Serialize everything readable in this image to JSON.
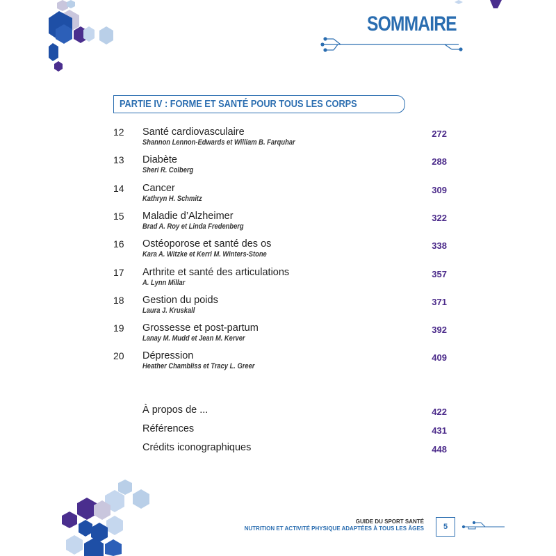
{
  "header": {
    "title": "SOMMAIRE"
  },
  "part": {
    "label": "PARTIE IV : FORME ET SANTÉ POUR TOUS LES CORPS"
  },
  "chapters": [
    {
      "num": "12",
      "title": "Santé cardiovasculaire",
      "authors": "Shannon Lennon-Edwards et William B. Farquhar",
      "page": "272"
    },
    {
      "num": "13",
      "title": "Diabète",
      "authors": "Sheri R. Colberg",
      "page": "288"
    },
    {
      "num": "14",
      "title": "Cancer",
      "authors": "Kathryn H. Schmitz",
      "page": "309"
    },
    {
      "num": "15",
      "title": "Maladie d’Alzheimer",
      "authors": "Brad A. Roy et Linda Fredenberg",
      "page": "322"
    },
    {
      "num": "16",
      "title": "Ostéoporose et santé des os",
      "authors": "Kara A. Witzke et Kerri M. Winters-Stone",
      "page": "338"
    },
    {
      "num": "17",
      "title": "Arthrite et santé des articulations",
      "authors": "A. Lynn Millar",
      "page": "357"
    },
    {
      "num": "18",
      "title": "Gestion du poids",
      "authors": "Laura J. Kruskall",
      "page": "371"
    },
    {
      "num": "19",
      "title": "Grossesse et post-partum",
      "authors": "Lanay M. Mudd et Jean M. Kerver",
      "page": "392"
    },
    {
      "num": "20",
      "title": "Dépression",
      "authors": "Heather Chambliss et Tracy L. Greer",
      "page": "409"
    }
  ],
  "extras": [
    {
      "title": "À propos de ...",
      "page": "422"
    },
    {
      "title": "Références",
      "page": "431"
    },
    {
      "title": "Crédits iconographiques",
      "page": "448"
    }
  ],
  "footer": {
    "title": "GUIDE DU SPORT SANTÉ",
    "subtitle": "NUTRITION ET ACTIVITÉ PHYSIQUE ADAPTÉES À TOUS LES ÂGES",
    "page_number": "5"
  },
  "colors": {
    "accent": "#2a6db0",
    "page_numbers": "#4b2a8a"
  }
}
